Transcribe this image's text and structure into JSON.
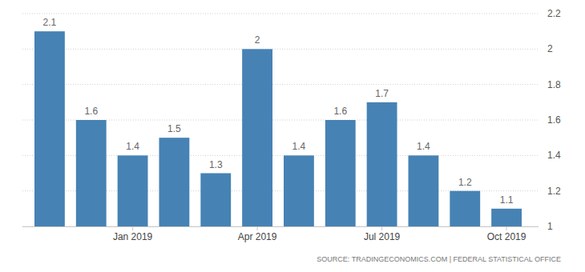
{
  "chart_data": {
    "type": "bar",
    "categories": [
      null,
      null,
      "Jan 2019",
      null,
      null,
      "Apr 2019",
      null,
      null,
      "Jul 2019",
      null,
      null,
      "Oct 2019"
    ],
    "values": [
      2.1,
      1.6,
      1.4,
      1.5,
      1.3,
      2,
      1.4,
      1.6,
      1.7,
      1.4,
      1.2,
      1.1
    ],
    "color": "#4682b4",
    "ylim": [
      1,
      2.2
    ],
    "yticks": [
      1,
      1.2,
      1.4,
      1.6,
      1.8,
      2,
      2.2
    ],
    "grid": true,
    "data_labels": true,
    "source": "SOURCE: TRADINGECONOMICS.COM | FEDERAL STATISTICAL OFFICE"
  }
}
